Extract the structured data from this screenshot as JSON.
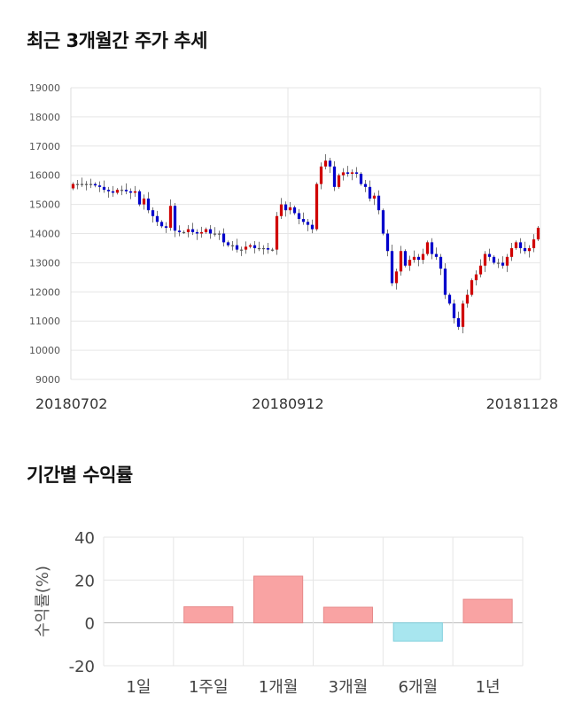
{
  "sections": {
    "price_title": "최근 3개월간 주가 추세",
    "returns_title": "기간별 수익률"
  },
  "colors": {
    "up": "#d00000",
    "down": "#0000cc",
    "bar_positive": "#f9a3a3",
    "bar_negative": "#a8e6ef",
    "grid": "#e6e6e6"
  },
  "chart_data": [
    {
      "type": "candlestick",
      "title": "최근 3개월간 주가 추세",
      "yticks": [
        "9000",
        "10000",
        "11000",
        "12000",
        "13000",
        "14000",
        "15000",
        "16000",
        "17000",
        "18000",
        "19000"
      ],
      "ylim": [
        9000,
        19000
      ],
      "xtick_labels": [
        "20180702",
        "20180912",
        "20181128"
      ],
      "xtick_index": [
        0,
        49,
        104
      ],
      "closes": [
        15700,
        15700,
        15700,
        15700,
        15700,
        15650,
        15600,
        15500,
        15450,
        15400,
        15500,
        15500,
        15450,
        15400,
        15450,
        15000,
        15200,
        14800,
        14600,
        14400,
        14250,
        14200,
        14950,
        14100,
        14050,
        14050,
        14150,
        14050,
        14000,
        14050,
        14150,
        14000,
        14000,
        14000,
        13700,
        13600,
        13600,
        13450,
        13450,
        13550,
        13600,
        13500,
        13500,
        13500,
        13450,
        13450,
        14600,
        15000,
        14800,
        14900,
        14700,
        14500,
        14400,
        14300,
        14150,
        15700,
        16300,
        16500,
        16300,
        15600,
        16000,
        16100,
        16050,
        16100,
        16050,
        15700,
        15600,
        15200,
        15300,
        14800,
        14000,
        13400,
        12300,
        12700,
        13400,
        12900,
        13100,
        13200,
        13100,
        13300,
        13700,
        13300,
        13200,
        12800,
        11900,
        11600,
        11100,
        10800,
        11600,
        11900,
        12400,
        12600,
        12900,
        13300,
        13200,
        13000,
        13000,
        12900,
        13200,
        13500,
        13700,
        13500,
        13400,
        13500,
        13800,
        14200
      ],
      "volume_note": ""
    },
    {
      "type": "bar",
      "title": "기간별 수익률",
      "categories": [
        "1일",
        "1주일",
        "1개월",
        "3개월",
        "6개월",
        "1년"
      ],
      "values": [
        0,
        7.5,
        21.8,
        7.3,
        -8.5,
        11.0
      ],
      "ylabel": "수익률(%)",
      "yticks": [
        "40",
        "20",
        "0",
        "-20"
      ],
      "ylim": [
        -20,
        40
      ]
    }
  ]
}
